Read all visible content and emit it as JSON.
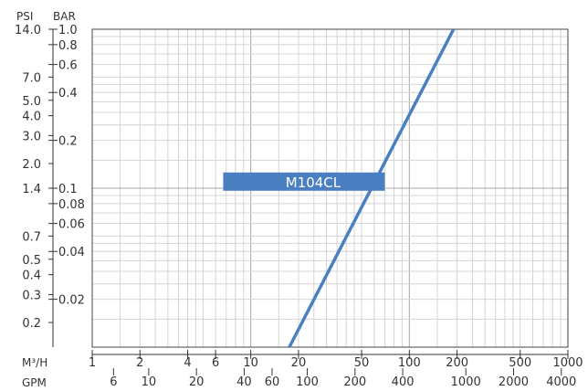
{
  "chart_data": {
    "type": "line",
    "title": "",
    "x_scale": "log",
    "y_scale": "log",
    "grid": true,
    "xlabel": "M³/H",
    "xlabel_secondary": "GPM",
    "ylabel_left": "PSI",
    "ylabel_right": "BAR",
    "xlim": [
      1,
      1000
    ],
    "ylim_bar": [
      0.01,
      1.0
    ],
    "x_ticks": [
      {
        "value": 1,
        "label": "1"
      },
      {
        "value": 2,
        "label": "2"
      },
      {
        "value": 4,
        "label": "4"
      },
      {
        "value": 6,
        "label": "6"
      },
      {
        "value": 10,
        "label": "10"
      },
      {
        "value": 20,
        "label": "20"
      },
      {
        "value": 50,
        "label": "50"
      },
      {
        "value": 100,
        "label": "100"
      },
      {
        "value": 200,
        "label": "200"
      },
      {
        "value": 500,
        "label": "500"
      },
      {
        "value": 1000,
        "label": "1000"
      }
    ],
    "gpm_ticks": [
      {
        "value": 6,
        "label": "6"
      },
      {
        "value": 10,
        "label": "10"
      },
      {
        "value": 20,
        "label": "20"
      },
      {
        "value": 40,
        "label": "40"
      },
      {
        "value": 60,
        "label": "60"
      },
      {
        "value": 100,
        "label": "100"
      },
      {
        "value": 200,
        "label": "200"
      },
      {
        "value": 400,
        "label": "400"
      },
      {
        "value": 1000,
        "label": "1000"
      },
      {
        "value": 2000,
        "label": "2000"
      },
      {
        "value": 4000,
        "label": "4000"
      }
    ],
    "bar_ticks": [
      {
        "value": 1.0,
        "label": "1.0"
      },
      {
        "value": 0.8,
        "label": "0.8"
      },
      {
        "value": 0.6,
        "label": "0.6"
      },
      {
        "value": 0.4,
        "label": "0.4"
      },
      {
        "value": 0.2,
        "label": "0.2"
      },
      {
        "value": 0.1,
        "label": "0.1"
      },
      {
        "value": 0.08,
        "label": "0.08"
      },
      {
        "value": 0.06,
        "label": "0.06"
      },
      {
        "value": 0.04,
        "label": "0.04"
      },
      {
        "value": 0.02,
        "label": "0.02"
      }
    ],
    "psi_ticks": [
      {
        "value": 14.0,
        "label": "14.0"
      },
      {
        "value": 7.0,
        "label": "7.0"
      },
      {
        "value": 5.0,
        "label": "5.0"
      },
      {
        "value": 4.0,
        "label": "4.0"
      },
      {
        "value": 3.0,
        "label": "3.0"
      },
      {
        "value": 2.0,
        "label": "2.0"
      },
      {
        "value": 1.4,
        "label": "1.4"
      },
      {
        "value": 0.7,
        "label": "0.7"
      },
      {
        "value": 0.5,
        "label": "0.5"
      },
      {
        "value": 0.4,
        "label": "0.4"
      },
      {
        "value": 0.3,
        "label": "0.3"
      },
      {
        "value": 0.2,
        "label": "0.2"
      }
    ],
    "series": [
      {
        "name": "M104CL",
        "color": "#4a7fc1",
        "points": [
          {
            "x": 17.5,
            "y": 0.01
          },
          {
            "x": 190,
            "y": 1.0
          }
        ]
      }
    ],
    "annotation": {
      "text": "M104CL",
      "x_start": 6.7,
      "x_end": 70,
      "y": 0.11,
      "color": "#4a7fc1",
      "text_color": "#ffffff"
    }
  }
}
